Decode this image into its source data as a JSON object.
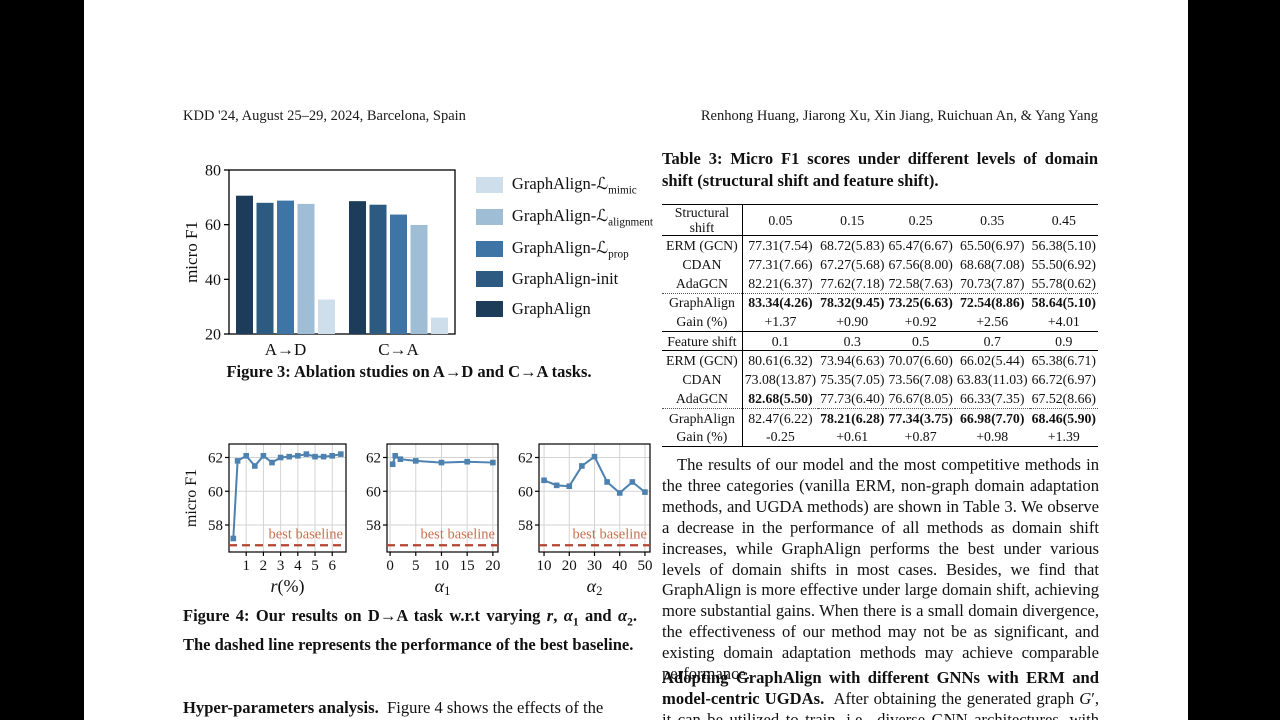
{
  "header": {
    "left": "KDD '24, August 25–29, 2024, Barcelona, Spain",
    "right": "Renhong Huang, Jiarong Xu, Xin Jiang, Ruichuan An, & Yang Yang"
  },
  "figure3": {
    "caption": "Figure 3: Ablation studies on A→D and C→A tasks.",
    "legend": [
      {
        "label": "GraphAlign-ℒ~mimic~",
        "color": "#cfdeeb"
      },
      {
        "label": "GraphAlign-ℒ~alignment~",
        "color": "#9fbdd5"
      },
      {
        "label": "GraphAlign-ℒ~prop~",
        "color": "#3e75a4"
      },
      {
        "label": "GraphAlign-init",
        "color": "#2d5a80"
      },
      {
        "label": "GraphAlign",
        "color": "#1c3c59"
      }
    ]
  },
  "figure4": {
    "caption": "Figure 4: Our results on D→A task w.r.t varying *r*, *α*~1~ and *α*~2~. The dashed line represents the performance of the best baseline."
  },
  "left_column_bottom": "**Hyper-parameters analysis.**&nbsp; Figure 4 shows the effects of the",
  "table3": {
    "caption": "Table 3: Micro F1 scores under different levels of domain shift (structural shift and feature shift).",
    "sections": [
      {
        "header": {
          "label": "Structural shift",
          "cols": [
            "0.05",
            "0.15",
            "0.25",
            "0.35",
            "0.45"
          ]
        },
        "rows": [
          {
            "label": "ERM (GCN)",
            "values": [
              "77.31(7.54)",
              "68.72(5.83)",
              "65.47(6.67)",
              "65.50(6.97)",
              "56.38(5.10)"
            ]
          },
          {
            "label": "CDAN",
            "values": [
              "77.31(7.66)",
              "67.27(5.68)",
              "67.56(8.00)",
              "68.68(7.08)",
              "55.50(6.92)"
            ]
          },
          {
            "label": "AdaGCN",
            "values": [
              "82.21(6.37)",
              "77.62(7.18)",
              "72.58(7.63)",
              "70.73(7.87)",
              "55.78(0.62)"
            ]
          },
          {
            "label": "GraphAlign",
            "values": [
              "83.34(4.26)",
              "78.32(9.45)",
              "73.25(6.63)",
              "72.54(8.86)",
              "58.64(5.10)"
            ],
            "bold": [
              true,
              true,
              true,
              true,
              true
            ],
            "dotted_top": true
          },
          {
            "label": "Gain (%)",
            "values": [
              "+1.37",
              "+0.90",
              "+0.92",
              "+2.56",
              "+4.01"
            ]
          }
        ]
      },
      {
        "header": {
          "label": "Feature shift",
          "cols": [
            "0.1",
            "0.3",
            "0.5",
            "0.7",
            "0.9"
          ]
        },
        "rows": [
          {
            "label": "ERM (GCN)",
            "values": [
              "80.61(6.32)",
              "73.94(6.63)",
              "70.07(6.60)",
              "66.02(5.44)",
              "65.38(6.71)"
            ]
          },
          {
            "label": "CDAN",
            "values": [
              "73.08(13.87)",
              "75.35(7.05)",
              "73.56(7.08)",
              "63.83(11.03)",
              "66.72(6.97)"
            ]
          },
          {
            "label": "AdaGCN",
            "values": [
              "82.68(5.50)",
              "77.73(6.40)",
              "76.67(8.05)",
              "66.33(7.35)",
              "67.52(8.66)"
            ],
            "bold": [
              true,
              false,
              false,
              false,
              false
            ]
          },
          {
            "label": "GraphAlign",
            "values": [
              "82.47(6.22)",
              "78.21(6.28)",
              "77.34(3.75)",
              "66.98(7.70)",
              "68.46(5.90)"
            ],
            "bold": [
              false,
              true,
              true,
              true,
              true
            ],
            "dotted_top": true
          },
          {
            "label": "Gain (%)",
            "values": [
              "-0.25",
              "+0.61",
              "+0.87",
              "+0.98",
              "+1.39"
            ]
          }
        ]
      }
    ]
  },
  "body": {
    "para1": "The results of our model and the most competitive methods in the three categories (vanilla ERM, non-graph domain adaptation methods, and UGDA methods) are shown in Table 3. We observe a decrease in the performance of all methods as domain shift increases, while GraphAlign performs the best under various levels of domain shifts in most cases. Besides, we find that GraphAlign is more effective under large domain shift, achieving more substantial gains. When there is a small domain divergence, the effectiveness of our method may not be as significant, and existing domain adaptation methods may achieve comparable performance.",
    "para2": "**Adopting GraphAlign with different GNNs with ERM and model-centric UGDAs.**&nbsp; After obtaining the generated graph *G*′, it can be utilized to train, i.e., diverse GNN architectures, with ERM"
  },
  "chart_data": [
    {
      "type": "bar",
      "title": "Ablation studies",
      "ylabel": "micro F1",
      "ylim": [
        20,
        80
      ],
      "yticks": [
        20,
        40,
        60,
        80
      ],
      "categories": [
        "A→D",
        "C→A"
      ],
      "series": [
        {
          "name": "GraphAlign",
          "color": "#1c3c59",
          "values": [
            70.6,
            68.6
          ]
        },
        {
          "name": "GraphAlign-init",
          "color": "#2d5a80",
          "values": [
            68.0,
            67.3
          ]
        },
        {
          "name": "GraphAlign-ℒprop",
          "color": "#3e75a4",
          "values": [
            68.8,
            63.7
          ]
        },
        {
          "name": "GraphAlign-ℒalignment",
          "color": "#9fbdd5",
          "values": [
            67.6,
            59.9
          ]
        },
        {
          "name": "GraphAlign-ℒmimic",
          "color": "#cfdeeb",
          "values": [
            32.6,
            26.0
          ]
        }
      ],
      "legend_position": "right of chart, top to bottom lightest to darkest",
      "grid": false
    },
    {
      "type": "line",
      "ylabel": "micro F1",
      "xlabel": "*r*(%)",
      "xlim": [
        0,
        6.8
      ],
      "ylim": [
        56.4,
        62.8
      ],
      "xticks": [
        1,
        2,
        3,
        4,
        5,
        6
      ],
      "yticks": [
        58,
        60,
        62
      ],
      "x": [
        0.25,
        0.5,
        1,
        1.5,
        2,
        2.5,
        3,
        3.5,
        4,
        4.5,
        5,
        5.5,
        6,
        6.5
      ],
      "y": [
        57.2,
        61.8,
        62.1,
        61.5,
        62.1,
        61.7,
        62.0,
        62.05,
        62.1,
        62.2,
        62.05,
        62.05,
        62.1,
        62.2
      ],
      "baseline": {
        "y": 56.8,
        "label": "best baseline"
      },
      "line_color": "#4d82b0",
      "baseline_color": "#b5432f",
      "baseline_label_color": "#c96f52",
      "grid": true
    },
    {
      "type": "line",
      "ylabel": "",
      "xlabel": "*α*~1~",
      "xlim": [
        -0.6,
        21
      ],
      "ylim": [
        56.4,
        62.8
      ],
      "xticks": [
        0,
        5,
        10,
        15,
        20
      ],
      "yticks": [
        58,
        60,
        62
      ],
      "x": [
        0.5,
        1,
        2,
        5,
        10,
        15,
        20
      ],
      "y": [
        61.6,
        62.1,
        61.9,
        61.8,
        61.7,
        61.75,
        61.7
      ],
      "baseline": {
        "y": 56.8,
        "label": "best baseline"
      },
      "line_color": "#4d82b0",
      "baseline_color": "#b5432f",
      "baseline_label_color": "#c96f52",
      "grid": true
    },
    {
      "type": "line",
      "ylabel": "",
      "xlabel": "*α*~2~",
      "xlim": [
        8,
        52
      ],
      "ylim": [
        56.4,
        62.8
      ],
      "xticks": [
        10,
        20,
        30,
        40,
        50
      ],
      "yticks": [
        58,
        60,
        62
      ],
      "x": [
        10,
        15,
        20,
        25,
        30,
        35,
        40,
        45,
        50
      ],
      "y": [
        60.65,
        60.35,
        60.3,
        61.5,
        62.05,
        60.55,
        59.9,
        60.55,
        59.95
      ],
      "baseline": {
        "y": 56.8,
        "label": "best baseline"
      },
      "line_color": "#4d82b0",
      "baseline_color": "#b5432f",
      "baseline_label_color": "#c96f52",
      "grid": true
    }
  ]
}
